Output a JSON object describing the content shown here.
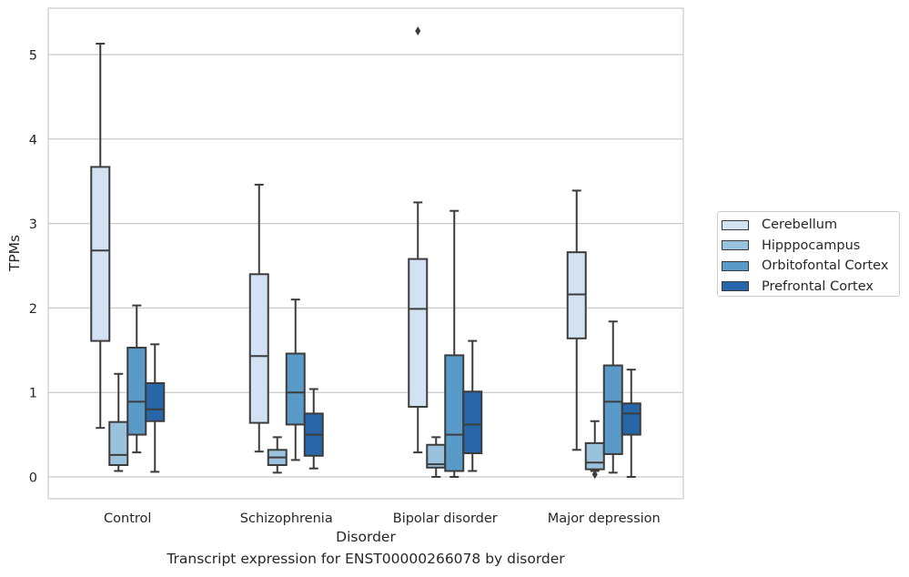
{
  "chart_data": {
    "type": "boxplot",
    "title": "",
    "xlabel": "Disorder",
    "ylabel": "TPMs",
    "caption": "Transcript expression for ENST00000266078 by disorder",
    "ylim": [
      -0.25,
      5.55
    ],
    "yticks": [
      0,
      1,
      2,
      3,
      4,
      5
    ],
    "grid": "horizontal",
    "legend_position": "right",
    "categories": [
      "Control",
      "Schizophrenia",
      "Bipolar disorder",
      "Major depression"
    ],
    "series": [
      {
        "name": "Cerebellum",
        "color": "#d2e2f2",
        "boxes": [
          {
            "whislo": 0.58,
            "q1": 1.61,
            "med": 2.68,
            "q3": 3.67,
            "whishi": 5.13,
            "fliers": []
          },
          {
            "whislo": 0.3,
            "q1": 0.64,
            "med": 1.43,
            "q3": 2.4,
            "whishi": 3.46,
            "fliers": []
          },
          {
            "whislo": 0.29,
            "q1": 0.83,
            "med": 1.99,
            "q3": 2.58,
            "whishi": 3.25,
            "fliers": [
              5.28
            ]
          },
          {
            "whislo": 0.32,
            "q1": 1.64,
            "med": 2.16,
            "q3": 2.66,
            "whishi": 3.39,
            "fliers": []
          }
        ]
      },
      {
        "name": "Hipppocampus",
        "color": "#9ac2dd",
        "boxes": [
          {
            "whislo": 0.07,
            "q1": 0.14,
            "med": 0.26,
            "q3": 0.65,
            "whishi": 1.22,
            "fliers": []
          },
          {
            "whislo": 0.05,
            "q1": 0.14,
            "med": 0.23,
            "q3": 0.32,
            "whishi": 0.47,
            "fliers": []
          },
          {
            "whislo": 0.0,
            "q1": 0.11,
            "med": 0.15,
            "q3": 0.38,
            "whishi": 0.47,
            "fliers": []
          },
          {
            "whislo": 0.07,
            "q1": 0.09,
            "med": 0.17,
            "q3": 0.4,
            "whishi": 0.66,
            "fliers": [
              0.03
            ]
          }
        ]
      },
      {
        "name": "Orbitofontal Cortex",
        "color": "#5a9ac8",
        "boxes": [
          {
            "whislo": 0.29,
            "q1": 0.5,
            "med": 0.89,
            "q3": 1.53,
            "whishi": 2.03,
            "fliers": []
          },
          {
            "whislo": 0.2,
            "q1": 0.62,
            "med": 1.0,
            "q3": 1.46,
            "whishi": 2.1,
            "fliers": []
          },
          {
            "whislo": 0.0,
            "q1": 0.07,
            "med": 0.5,
            "q3": 1.44,
            "whishi": 3.15,
            "fliers": []
          },
          {
            "whislo": 0.05,
            "q1": 0.27,
            "med": 0.89,
            "q3": 1.32,
            "whishi": 1.84,
            "fliers": []
          }
        ]
      },
      {
        "name": "Prefrontal Cortex",
        "color": "#2766a8",
        "boxes": [
          {
            "whislo": 0.06,
            "q1": 0.66,
            "med": 0.8,
            "q3": 1.11,
            "whishi": 1.57,
            "fliers": []
          },
          {
            "whislo": 0.1,
            "q1": 0.25,
            "med": 0.5,
            "q3": 0.75,
            "whishi": 1.04,
            "fliers": []
          },
          {
            "whislo": 0.07,
            "q1": 0.28,
            "med": 0.62,
            "q3": 1.01,
            "whishi": 1.61,
            "fliers": []
          },
          {
            "whislo": 0.0,
            "q1": 0.5,
            "med": 0.75,
            "q3": 0.87,
            "whishi": 1.27,
            "fliers": []
          }
        ]
      }
    ]
  }
}
